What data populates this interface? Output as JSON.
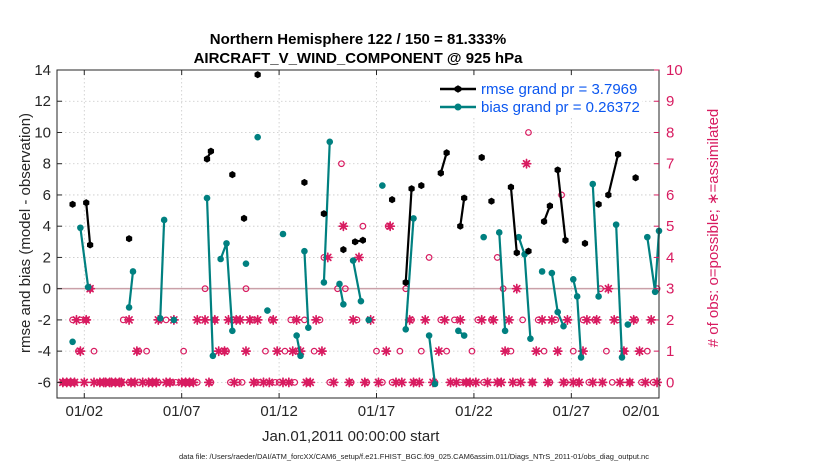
{
  "chart_data": {
    "type": "line",
    "title": "Northern Hemisphere 122 / 150 = 81.333%",
    "subtitle": "AIRCRAFT_V_WIND_COMPONENT @ 925 hPa",
    "xlabel": "Jan.01,2011 00:00:00 start",
    "ylabel": "rmse and bias (model - observation)",
    "ylabel_right": "# of obs: o=possible; ∗=assimilated",
    "footer": "data file: /Users/raeder/DAI/ATM_forcXX/CAM6_setup/f.e21.FHIST_BGC.f09_025.CAM6assim.011/Diags_NTrS_2011-01/obs_diag_output.nc",
    "xlim": [
      0.6,
      31.5
    ],
    "ylim": [
      -7,
      14
    ],
    "ylim_right": [
      -0.5,
      10
    ],
    "x_ticks": [
      2,
      7,
      12,
      17,
      22,
      27,
      32
    ],
    "x_tick_labels": [
      "01/02",
      "01/07",
      "01/12",
      "01/17",
      "01/22",
      "01/27",
      "02/01"
    ],
    "y_ticks": [
      -6,
      -4,
      -2,
      0,
      2,
      4,
      6,
      8,
      10,
      12,
      14
    ],
    "y_tick_labels": [
      "-6",
      "-4",
      "-2",
      "0",
      "2",
      "4",
      "6",
      "8",
      "10",
      "12",
      "14"
    ],
    "y_ticks_right": [
      0,
      1,
      2,
      3,
      4,
      5,
      6,
      7,
      8,
      9,
      10
    ],
    "y_tick_labels_right": [
      "0",
      "1",
      "2",
      "3",
      "4",
      "5",
      "6",
      "7",
      "8",
      "9",
      "10"
    ],
    "grid": true,
    "legend_position": "top-right",
    "zero_line": 0,
    "series": [
      {
        "name": "rmse grand pr = 3.7969",
        "color": "#000000",
        "marker": "hexagon",
        "segments": [
          [
            [
              1.4,
              5.4
            ]
          ],
          [
            [
              2.1,
              5.5
            ],
            [
              2.3,
              2.8
            ]
          ],
          [
            [
              4.3,
              3.2
            ]
          ],
          [
            [
              8.3,
              8.3
            ],
            [
              8.5,
              8.8
            ]
          ],
          [
            [
              9.6,
              7.3
            ]
          ],
          [
            [
              10.2,
              4.5
            ]
          ],
          [
            [
              10.9,
              13.7
            ]
          ],
          [
            [
              13.3,
              6.8
            ]
          ],
          [
            [
              14.3,
              4.8
            ]
          ],
          [
            [
              15.3,
              2.5
            ]
          ],
          [
            [
              15.9,
              3.0
            ],
            [
              16.3,
              3.1
            ]
          ],
          [
            [
              17.8,
              5.7
            ]
          ],
          [
            [
              18.5,
              0.4
            ],
            [
              18.8,
              6.4
            ]
          ],
          [
            [
              19.3,
              6.6
            ]
          ],
          [
            [
              20.3,
              7.4
            ],
            [
              20.6,
              8.7
            ]
          ],
          [
            [
              21.3,
              4.0
            ],
            [
              21.5,
              5.8
            ]
          ],
          [
            [
              22.4,
              8.4
            ]
          ],
          [
            [
              22.9,
              5.6
            ]
          ],
          [
            [
              23.9,
              6.5
            ],
            [
              24.2,
              2.3
            ]
          ],
          [
            [
              24.8,
              2.4
            ]
          ],
          [
            [
              25.6,
              4.3
            ],
            [
              25.9,
              5.3
            ]
          ],
          [
            [
              26.3,
              7.6
            ],
            [
              26.7,
              3.1
            ]
          ],
          [
            [
              27.7,
              2.9
            ]
          ],
          [
            [
              28.4,
              5.4
            ]
          ],
          [
            [
              28.9,
              6.0
            ],
            [
              29.4,
              8.6
            ]
          ],
          [
            [
              30.3,
              7.1
            ]
          ]
        ]
      },
      {
        "name": "bias grand pr = 0.26372",
        "color": "#008080",
        "marker": "circle",
        "segments": [
          [
            [
              1.4,
              -3.4
            ]
          ],
          [
            [
              1.8,
              3.9
            ],
            [
              2.2,
              0.1
            ]
          ],
          [
            [
              4.3,
              -1.2
            ],
            [
              4.5,
              1.1
            ]
          ],
          [
            [
              5.9,
              -1.9
            ],
            [
              6.1,
              4.4
            ]
          ],
          [
            [
              6.6,
              -2.0
            ]
          ],
          [
            [
              8.3,
              5.8
            ],
            [
              8.6,
              -4.3
            ]
          ],
          [
            [
              9.0,
              1.9
            ],
            [
              9.3,
              2.9
            ],
            [
              9.6,
              -2.7
            ]
          ],
          [
            [
              10.3,
              1.6
            ]
          ],
          [
            [
              10.9,
              9.7
            ]
          ],
          [
            [
              11.4,
              -1.4
            ]
          ],
          [
            [
              12.2,
              3.5
            ]
          ],
          [
            [
              12.9,
              -3.0
            ],
            [
              13.1,
              -4.3
            ]
          ],
          [
            [
              13.3,
              2.4
            ],
            [
              13.5,
              -2.5
            ]
          ],
          [
            [
              14.3,
              0.4
            ],
            [
              14.6,
              9.4
            ]
          ],
          [
            [
              15.1,
              0.3
            ],
            [
              15.3,
              -1.0
            ]
          ],
          [
            [
              15.8,
              1.8
            ],
            [
              16.2,
              -0.8
            ]
          ],
          [
            [
              16.6,
              -2.0
            ]
          ],
          [
            [
              17.3,
              6.6
            ]
          ],
          [
            [
              18.5,
              -2.6
            ],
            [
              18.9,
              4.5
            ]
          ],
          [
            [
              19.7,
              -3.0
            ],
            [
              20.0,
              -6.1
            ]
          ],
          [
            [
              21.2,
              -2.7
            ],
            [
              21.5,
              -3.0
            ]
          ],
          [
            [
              22.5,
              3.3
            ]
          ],
          [
            [
              23.3,
              3.6
            ],
            [
              23.6,
              -2.7
            ]
          ],
          [
            [
              24.3,
              3.3
            ],
            [
              24.6,
              2.2
            ],
            [
              24.9,
              -3.2
            ]
          ],
          [
            [
              25.5,
              1.1
            ]
          ],
          [
            [
              26.0,
              1.0
            ],
            [
              26.3,
              -1.5
            ],
            [
              26.6,
              -2.4
            ]
          ],
          [
            [
              27.1,
              0.6
            ],
            [
              27.3,
              -0.5
            ],
            [
              27.5,
              -4.4
            ]
          ],
          [
            [
              28.1,
              6.7
            ],
            [
              28.4,
              -0.5
            ]
          ],
          [
            [
              29.3,
              4.1
            ],
            [
              29.6,
              -4.4
            ]
          ],
          [
            [
              29.9,
              -2.3
            ]
          ],
          [
            [
              30.9,
              3.3
            ],
            [
              31.3,
              -0.2
            ],
            [
              31.5,
              3.7
            ]
          ]
        ]
      }
    ],
    "obs_possible": [
      [
        0.9,
        0
      ],
      [
        1.1,
        0
      ],
      [
        1.3,
        0
      ],
      [
        1.4,
        2
      ],
      [
        1.5,
        0
      ],
      [
        1.7,
        1
      ],
      [
        1.8,
        2
      ],
      [
        2.1,
        2
      ],
      [
        2.3,
        3
      ],
      [
        2.5,
        1
      ],
      [
        2.8,
        0
      ],
      [
        3.0,
        0
      ],
      [
        3.2,
        0
      ],
      [
        3.3,
        0
      ],
      [
        3.5,
        0
      ],
      [
        3.7,
        0
      ],
      [
        3.9,
        0
      ],
      [
        4.0,
        2
      ],
      [
        4.3,
        0
      ],
      [
        4.5,
        0
      ],
      [
        4.8,
        1
      ],
      [
        5.2,
        1
      ],
      [
        5.4,
        0
      ],
      [
        5.8,
        0
      ],
      [
        5.9,
        2
      ],
      [
        6.2,
        2
      ],
      [
        6.5,
        0
      ],
      [
        6.7,
        0
      ],
      [
        7.1,
        1
      ],
      [
        7.3,
        0
      ],
      [
        7.5,
        0
      ],
      [
        7.8,
        0
      ],
      [
        8.2,
        3
      ],
      [
        8.5,
        0
      ],
      [
        8.7,
        2
      ],
      [
        9.1,
        1
      ],
      [
        9.3,
        1
      ],
      [
        9.5,
        0
      ],
      [
        9.7,
        2
      ],
      [
        9.9,
        0
      ],
      [
        10.1,
        0
      ],
      [
        10.3,
        3
      ],
      [
        10.6,
        2
      ],
      [
        10.8,
        0
      ],
      [
        11.0,
        0
      ],
      [
        11.3,
        1
      ],
      [
        11.6,
        2
      ],
      [
        11.8,
        0
      ],
      [
        12.0,
        0
      ],
      [
        12.3,
        1
      ],
      [
        12.6,
        2
      ],
      [
        12.8,
        0
      ],
      [
        13.0,
        1
      ],
      [
        13.3,
        2
      ],
      [
        13.5,
        0
      ],
      [
        13.8,
        1
      ],
      [
        14.1,
        2
      ],
      [
        14.3,
        4
      ],
      [
        14.6,
        0
      ],
      [
        15.0,
        3
      ],
      [
        15.2,
        7
      ],
      [
        15.4,
        3
      ],
      [
        15.7,
        0
      ],
      [
        16.0,
        2
      ],
      [
        16.3,
        5
      ],
      [
        16.5,
        0
      ],
      [
        17.0,
        1
      ],
      [
        17.3,
        0
      ],
      [
        17.6,
        5
      ],
      [
        17.8,
        0
      ],
      [
        18.2,
        1
      ],
      [
        18.5,
        3
      ],
      [
        18.8,
        2
      ],
      [
        19.0,
        0
      ],
      [
        19.3,
        1
      ],
      [
        19.7,
        4
      ],
      [
        20.0,
        0
      ],
      [
        20.3,
        2
      ],
      [
        20.6,
        1
      ],
      [
        21.0,
        2
      ],
      [
        21.3,
        0
      ],
      [
        21.6,
        0
      ],
      [
        21.9,
        1
      ],
      [
        22.2,
        2
      ],
      [
        22.5,
        0
      ],
      [
        22.9,
        2
      ],
      [
        23.2,
        4
      ],
      [
        23.5,
        3
      ],
      [
        23.9,
        1
      ],
      [
        24.2,
        0
      ],
      [
        24.5,
        2
      ],
      [
        24.8,
        8
      ],
      [
        25.0,
        0
      ],
      [
        25.3,
        2
      ],
      [
        25.6,
        1
      ],
      [
        25.9,
        0
      ],
      [
        26.2,
        2
      ],
      [
        26.5,
        6
      ],
      [
        26.7,
        0
      ],
      [
        27.1,
        1
      ],
      [
        27.3,
        0
      ],
      [
        27.6,
        2
      ],
      [
        27.9,
        0
      ],
      [
        28.2,
        2
      ],
      [
        28.5,
        3
      ],
      [
        28.8,
        1
      ],
      [
        29.1,
        0
      ],
      [
        29.4,
        2
      ],
      [
        29.7,
        1
      ],
      [
        30.0,
        0
      ],
      [
        30.3,
        2
      ],
      [
        30.6,
        0
      ],
      [
        30.9,
        1
      ],
      [
        31.2,
        0
      ],
      [
        31.4,
        3
      ]
    ],
    "obs_assimilated": [
      [
        0.9,
        0
      ],
      [
        1.1,
        0
      ],
      [
        1.3,
        0
      ],
      [
        1.5,
        0
      ],
      [
        1.6,
        2
      ],
      [
        1.8,
        1
      ],
      [
        2.0,
        0
      ],
      [
        2.1,
        2
      ],
      [
        2.3,
        3
      ],
      [
        2.5,
        0
      ],
      [
        2.8,
        0
      ],
      [
        3.0,
        0
      ],
      [
        3.1,
        0
      ],
      [
        3.3,
        0
      ],
      [
        3.4,
        0
      ],
      [
        3.6,
        0
      ],
      [
        3.8,
        0
      ],
      [
        3.9,
        0
      ],
      [
        4.3,
        2
      ],
      [
        4.4,
        0
      ],
      [
        4.6,
        0
      ],
      [
        4.7,
        1
      ],
      [
        5.0,
        0
      ],
      [
        5.3,
        0
      ],
      [
        5.5,
        0
      ],
      [
        5.7,
        0
      ],
      [
        5.8,
        2
      ],
      [
        6.2,
        0
      ],
      [
        6.4,
        0
      ],
      [
        6.6,
        2
      ],
      [
        7.0,
        0
      ],
      [
        7.2,
        0
      ],
      [
        7.4,
        0
      ],
      [
        7.6,
        0
      ],
      [
        7.8,
        2
      ],
      [
        8.2,
        2
      ],
      [
        8.4,
        0
      ],
      [
        8.7,
        2
      ],
      [
        8.9,
        1
      ],
      [
        9.2,
        1
      ],
      [
        9.4,
        2
      ],
      [
        9.7,
        0
      ],
      [
        9.8,
        2
      ],
      [
        10.0,
        2
      ],
      [
        10.3,
        1
      ],
      [
        10.5,
        2
      ],
      [
        10.7,
        0
      ],
      [
        10.9,
        2
      ],
      [
        11.2,
        0
      ],
      [
        11.5,
        0
      ],
      [
        11.7,
        2
      ],
      [
        11.9,
        1
      ],
      [
        12.2,
        0
      ],
      [
        12.5,
        0
      ],
      [
        12.7,
        1
      ],
      [
        12.9,
        2
      ],
      [
        13.1,
        1
      ],
      [
        13.4,
        0
      ],
      [
        13.6,
        0
      ],
      [
        13.9,
        2
      ],
      [
        14.2,
        1
      ],
      [
        14.5,
        4
      ],
      [
        14.8,
        0
      ],
      [
        15.3,
        5
      ],
      [
        15.6,
        0
      ],
      [
        15.8,
        2
      ],
      [
        16.1,
        4
      ],
      [
        16.4,
        0
      ],
      [
        16.7,
        2
      ],
      [
        17.1,
        0
      ],
      [
        17.5,
        1
      ],
      [
        17.7,
        5
      ],
      [
        18.0,
        0
      ],
      [
        18.3,
        0
      ],
      [
        18.7,
        2
      ],
      [
        18.9,
        0
      ],
      [
        19.2,
        0
      ],
      [
        19.5,
        2
      ],
      [
        19.9,
        0
      ],
      [
        20.2,
        1
      ],
      [
        20.5,
        2
      ],
      [
        20.8,
        0
      ],
      [
        21.1,
        0
      ],
      [
        21.3,
        2
      ],
      [
        21.6,
        0
      ],
      [
        21.8,
        0
      ],
      [
        22.1,
        0
      ],
      [
        22.4,
        2
      ],
      [
        22.7,
        0
      ],
      [
        23.0,
        2
      ],
      [
        23.2,
        0
      ],
      [
        23.4,
        0
      ],
      [
        23.6,
        1
      ],
      [
        23.8,
        2
      ],
      [
        24.0,
        0
      ],
      [
        24.2,
        3
      ],
      [
        24.4,
        0
      ],
      [
        24.7,
        7
      ],
      [
        25.0,
        0
      ],
      [
        25.2,
        1
      ],
      [
        25.5,
        2
      ],
      [
        25.8,
        0
      ],
      [
        26.0,
        2
      ],
      [
        26.3,
        1
      ],
      [
        26.6,
        0
      ],
      [
        26.8,
        2
      ],
      [
        27.1,
        0
      ],
      [
        27.4,
        0
      ],
      [
        27.6,
        1
      ],
      [
        27.8,
        2
      ],
      [
        28.1,
        0
      ],
      [
        28.3,
        2
      ],
      [
        28.6,
        0
      ],
      [
        28.9,
        3
      ],
      [
        29.2,
        2
      ],
      [
        29.5,
        0
      ],
      [
        29.7,
        1
      ],
      [
        30.0,
        0
      ],
      [
        30.2,
        2
      ],
      [
        30.5,
        1
      ],
      [
        30.8,
        0
      ],
      [
        31.1,
        2
      ],
      [
        31.4,
        0
      ]
    ]
  },
  "legend": {
    "rmse_label": "rmse grand pr = 3.7969",
    "bias_label": "bias grand pr = 0.26372"
  }
}
